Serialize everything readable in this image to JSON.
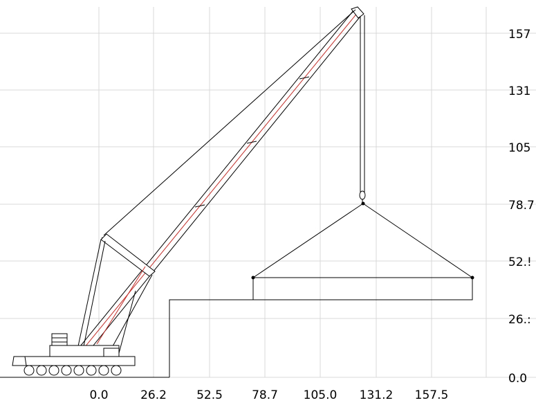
{
  "chart_data": {
    "type": "diagram",
    "x_axis": {
      "ticks": [
        "0.0",
        "26.2",
        "52.5",
        "78.7",
        "105.0",
        "131.2",
        "157.5"
      ]
    },
    "y_axis": {
      "ticks": [
        "0.0",
        "26.2",
        "52.5",
        "78.7",
        "105.0",
        "131.2",
        "157.5"
      ],
      "ticks_display": [
        "0.0",
        "26.:",
        "52.!",
        "78.7",
        "105",
        "131",
        "157"
      ]
    },
    "grid": true,
    "legend": "none"
  },
  "colors": {
    "line": "#000000",
    "grid": "#d9d9d9",
    "load_line": "#c0302b",
    "background": "#ffffff"
  }
}
